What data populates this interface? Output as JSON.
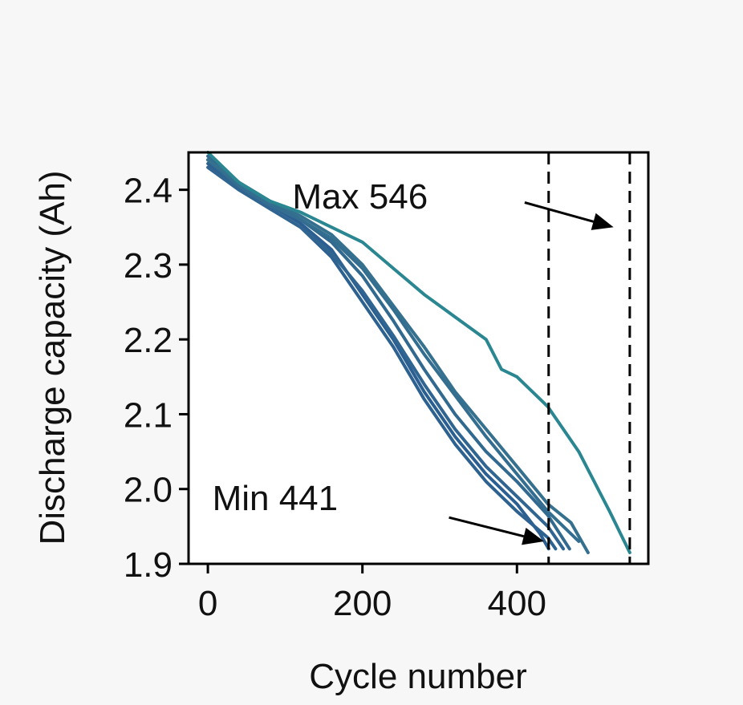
{
  "chart_data": {
    "type": "line",
    "xlabel": "Cycle number",
    "ylabel": "Discharge capacity (Ah)",
    "xlim": [
      -25,
      570
    ],
    "ylim": [
      1.9,
      2.45
    ],
    "xticks": [
      0,
      200,
      400
    ],
    "yticks": [
      1.9,
      2.0,
      2.1,
      2.2,
      2.3,
      2.4
    ],
    "xtick_labels": [
      "0",
      "200",
      "400"
    ],
    "ytick_labels": [
      "1.9",
      "2.0",
      "2.1",
      "2.2",
      "2.3",
      "2.4"
    ],
    "grid": false,
    "legend": "none",
    "series": [
      {
        "color": "#2b5f92",
        "x": [
          0,
          40,
          80,
          120,
          160,
          200,
          240,
          280,
          320,
          360,
          400,
          430,
          441
        ],
        "y": [
          2.44,
          2.405,
          2.38,
          2.355,
          2.32,
          2.26,
          2.2,
          2.13,
          2.07,
          2.02,
          1.98,
          1.94,
          1.92
        ]
      },
      {
        "color": "#2d6290",
        "x": [
          0,
          40,
          80,
          120,
          160,
          200,
          240,
          280,
          320,
          360,
          400,
          440,
          450
        ],
        "y": [
          2.435,
          2.4,
          2.375,
          2.35,
          2.31,
          2.25,
          2.19,
          2.12,
          2.06,
          2.01,
          1.97,
          1.935,
          1.92
        ]
      },
      {
        "color": "#2f6590",
        "x": [
          0,
          40,
          80,
          120,
          160,
          200,
          240,
          280,
          320,
          360,
          400,
          440,
          460
        ],
        "y": [
          2.43,
          2.4,
          2.375,
          2.35,
          2.315,
          2.265,
          2.205,
          2.14,
          2.08,
          2.03,
          1.99,
          1.95,
          1.92
        ]
      },
      {
        "color": "#31698f",
        "x": [
          0,
          40,
          80,
          120,
          160,
          200,
          240,
          280,
          320,
          360,
          400,
          440,
          468
        ],
        "y": [
          2.445,
          2.41,
          2.385,
          2.36,
          2.33,
          2.285,
          2.225,
          2.16,
          2.1,
          2.05,
          2.01,
          1.965,
          1.92
        ]
      },
      {
        "color": "#336d8f",
        "x": [
          0,
          40,
          80,
          120,
          160,
          200,
          240,
          280,
          320,
          360,
          400,
          440,
          480
        ],
        "y": [
          2.44,
          2.405,
          2.38,
          2.36,
          2.335,
          2.295,
          2.24,
          2.18,
          2.125,
          2.07,
          2.02,
          1.97,
          1.93
        ]
      },
      {
        "color": "#35718e",
        "x": [
          0,
          40,
          80,
          120,
          160,
          200,
          240,
          280,
          320,
          360,
          400,
          440,
          470,
          492
        ],
        "y": [
          2.44,
          2.41,
          2.385,
          2.365,
          2.34,
          2.3,
          2.245,
          2.19,
          2.13,
          2.08,
          2.03,
          1.98,
          1.955,
          1.915
        ]
      },
      {
        "color": "#2a8791",
        "x": [
          0,
          40,
          80,
          120,
          160,
          200,
          240,
          280,
          320,
          360,
          380,
          400,
          440,
          480,
          520,
          546
        ],
        "y": [
          2.45,
          2.41,
          2.385,
          2.37,
          2.35,
          2.33,
          2.295,
          2.26,
          2.23,
          2.2,
          2.16,
          2.15,
          2.11,
          2.05,
          1.97,
          1.915
        ]
      }
    ],
    "vlines": [
      441,
      546
    ],
    "annotations": [
      {
        "text": "Max 546",
        "text_x": 197,
        "text_y": 2.375,
        "arrow_to_x": 525,
        "arrow_to_y": 2.35,
        "arrow_from_x": 410,
        "arrow_from_y": 2.383
      },
      {
        "text": "Min 441",
        "text_x": 87,
        "text_y": 1.972,
        "arrow_to_x": 435,
        "arrow_to_y": 1.93,
        "arrow_from_x": 312,
        "arrow_from_y": 1.962
      }
    ]
  }
}
